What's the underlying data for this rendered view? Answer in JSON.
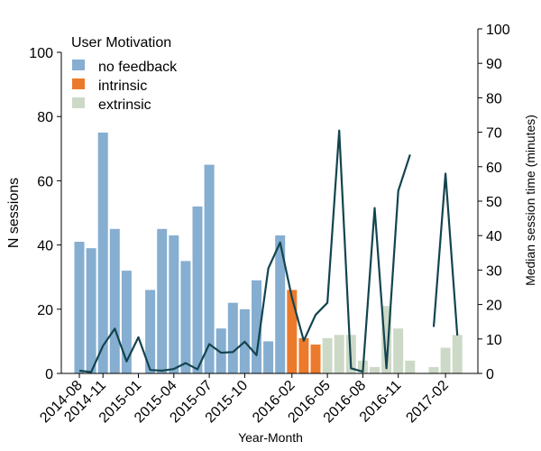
{
  "chart_data": {
    "type": "bar",
    "title": "",
    "xlabel": "Year-Month",
    "ylabel": "N sessions",
    "y2label": "Median session time (minutes)",
    "ylim": [
      0,
      100
    ],
    "y2lim": [
      0,
      100
    ],
    "grid": false,
    "legend": {
      "title": "User Motivation",
      "placement": "top-left",
      "entries": [
        {
          "label": "no feedback",
          "color": "#86aed0"
        },
        {
          "label": "intrinsic",
          "color": "#ec7a2c"
        },
        {
          "label": "extrinsic",
          "color": "#cdd9c7"
        }
      ]
    },
    "line_color": "#13444f",
    "yticks": [
      0,
      20,
      40,
      60,
      80,
      100
    ],
    "y2ticks": [
      0,
      10,
      20,
      30,
      40,
      50,
      60,
      70,
      80,
      90,
      100
    ],
    "xtick_labels": [
      "2014-08",
      "2014-11",
      "2015-01",
      "2015-04",
      "2015-07",
      "2015-10",
      "2016-02",
      "2016-05",
      "2016-08",
      "2016-11",
      "2017-02"
    ],
    "xtick_positions": [
      0,
      2,
      5,
      8,
      11,
      14,
      18,
      21,
      24,
      27,
      31
    ],
    "bars": [
      {
        "cat": "2014-08",
        "group": "no feedback",
        "value": 41
      },
      {
        "cat": "2014-09",
        "group": "no feedback",
        "value": 39
      },
      {
        "cat": "2014-10",
        "group": "no feedback",
        "value": 75
      },
      {
        "cat": "2014-11",
        "group": "no feedback",
        "value": 45
      },
      {
        "cat": "2014-12",
        "group": "no feedback",
        "value": 32
      },
      {
        "cat": "2015-01",
        "group": "no feedback",
        "value": 0
      },
      {
        "cat": "2015-02",
        "group": "no feedback",
        "value": 26
      },
      {
        "cat": "2015-03",
        "group": "no feedback",
        "value": 45
      },
      {
        "cat": "2015-04",
        "group": "no feedback",
        "value": 43
      },
      {
        "cat": "2015-05",
        "group": "no feedback",
        "value": 35
      },
      {
        "cat": "2015-06",
        "group": "no feedback",
        "value": 52
      },
      {
        "cat": "2015-07",
        "group": "no feedback",
        "value": 65
      },
      {
        "cat": "2015-08",
        "group": "no feedback",
        "value": 14
      },
      {
        "cat": "2015-09",
        "group": "no feedback",
        "value": 22
      },
      {
        "cat": "2015-10",
        "group": "no feedback",
        "value": 20
      },
      {
        "cat": "2015-11",
        "group": "no feedback",
        "value": 29
      },
      {
        "cat": "2015-12",
        "group": "no feedback",
        "value": 10
      },
      {
        "cat": "2016-01",
        "group": "no feedback",
        "value": 43
      },
      {
        "cat": "2016-02",
        "group": "intrinsic",
        "value": 26
      },
      {
        "cat": "2016-03",
        "group": "intrinsic",
        "value": 11
      },
      {
        "cat": "2016-04",
        "group": "intrinsic",
        "value": 9
      },
      {
        "cat": "2016-05",
        "group": "extrinsic",
        "value": 11
      },
      {
        "cat": "2016-06",
        "group": "extrinsic",
        "value": 12
      },
      {
        "cat": "2016-07",
        "group": "extrinsic",
        "value": 12
      },
      {
        "cat": "2016-08",
        "group": "extrinsic",
        "value": 4
      },
      {
        "cat": "2016-09",
        "group": "extrinsic",
        "value": 2
      },
      {
        "cat": "2016-10",
        "group": "extrinsic",
        "value": 21
      },
      {
        "cat": "2016-11",
        "group": "extrinsic",
        "value": 14
      },
      {
        "cat": "2016-12",
        "group": "extrinsic",
        "value": 4
      },
      {
        "cat": "2017-01",
        "group": "extrinsic",
        "value": 0
      },
      {
        "cat": "2017-02",
        "group": "extrinsic",
        "value": 2
      },
      {
        "cat": "2017-03",
        "group": "extrinsic",
        "value": 8
      },
      {
        "cat": "2017-04",
        "group": "extrinsic",
        "value": 12
      }
    ],
    "median_time_segments": [
      [
        {
          "x": 0,
          "y": 0.8
        },
        {
          "x": 1,
          "y": 0.4
        },
        {
          "x": 2,
          "y": 8
        },
        {
          "x": 3,
          "y": 13
        },
        {
          "x": 4,
          "y": 3.5
        },
        {
          "x": 5,
          "y": 10.5
        },
        {
          "x": 6,
          "y": 1
        },
        {
          "x": 7,
          "y": 0.8
        },
        {
          "x": 8,
          "y": 1.3
        },
        {
          "x": 9,
          "y": 3
        },
        {
          "x": 10,
          "y": 1.2
        },
        {
          "x": 11,
          "y": 8.5
        },
        {
          "x": 12,
          "y": 6
        },
        {
          "x": 13,
          "y": 6.2
        },
        {
          "x": 14,
          "y": 9.2
        },
        {
          "x": 15,
          "y": 5.3
        },
        {
          "x": 16,
          "y": 30.5
        },
        {
          "x": 17,
          "y": 38
        },
        {
          "x": 18,
          "y": 22
        },
        {
          "x": 19,
          "y": 9.5
        },
        {
          "x": 20,
          "y": 17
        },
        {
          "x": 21,
          "y": 20.5
        },
        {
          "x": 22,
          "y": 70.5
        },
        {
          "x": 23,
          "y": 1.5
        },
        {
          "x": 24,
          "y": 0.5
        },
        {
          "x": 25,
          "y": 48
        },
        {
          "x": 26,
          "y": 1.5
        },
        {
          "x": 27,
          "y": 53
        },
        {
          "x": 28,
          "y": 63.5
        }
      ],
      [
        {
          "x": 30,
          "y": 13.5
        },
        {
          "x": 31,
          "y": 58
        },
        {
          "x": 32,
          "y": 11
        }
      ]
    ]
  }
}
